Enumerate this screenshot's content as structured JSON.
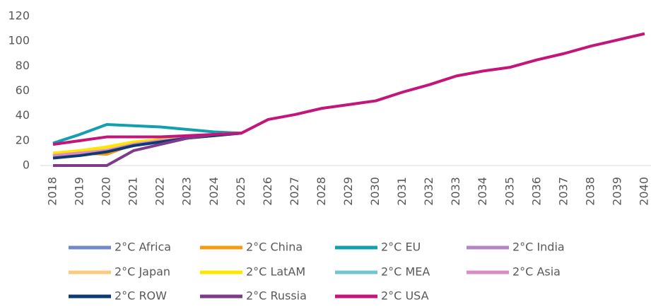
{
  "chart_data": {
    "type": "line",
    "categories": [
      "2018",
      "2019",
      "2020",
      "2021",
      "2022",
      "2023",
      "2024",
      "2025",
      "2026",
      "2027",
      "2028",
      "2029",
      "2030",
      "2031",
      "2032",
      "2033",
      "2034",
      "2035",
      "2036",
      "2037",
      "2038",
      "2039",
      "2040"
    ],
    "ylim": [
      0,
      120
    ],
    "yticks": [
      0,
      20,
      40,
      60,
      80,
      100,
      120
    ],
    "grid": false,
    "legend": "bottom",
    "series": [
      {
        "name": "2°C Africa",
        "color": "#7189c9",
        "values": [
          7,
          9,
          12,
          17,
          20,
          22,
          24,
          26,
          null,
          null,
          null,
          null,
          null,
          null,
          null,
          null,
          null,
          null,
          null,
          null,
          null,
          null,
          null
        ]
      },
      {
        "name": "2°C China",
        "color": "#f39c12",
        "values": [
          8,
          10,
          9,
          17,
          20,
          22,
          25,
          26,
          null,
          null,
          null,
          null,
          null,
          null,
          null,
          null,
          null,
          null,
          null,
          null,
          null,
          null,
          null
        ]
      },
      {
        "name": "2°C EU",
        "color": "#129fae",
        "values": [
          18,
          25,
          33,
          32,
          31,
          29,
          27,
          26,
          null,
          null,
          null,
          null,
          null,
          null,
          null,
          null,
          null,
          null,
          null,
          null,
          null,
          null,
          null
        ]
      },
      {
        "name": "2°C India",
        "color": "#b386c4",
        "values": [
          8,
          10,
          12,
          17,
          20,
          22,
          25,
          26,
          null,
          null,
          null,
          null,
          null,
          null,
          null,
          null,
          null,
          null,
          null,
          null,
          null,
          null,
          null
        ]
      },
      {
        "name": "2°C Japan",
        "color": "#fbc97f",
        "values": [
          9,
          11,
          14,
          18,
          20,
          22,
          25,
          26,
          null,
          null,
          null,
          null,
          null,
          null,
          null,
          null,
          null,
          null,
          null,
          null,
          null,
          null,
          null
        ]
      },
      {
        "name": "2°C LatAM",
        "color": "#ffe500",
        "values": [
          10,
          12,
          15,
          19,
          21,
          23,
          25,
          26,
          null,
          null,
          null,
          null,
          null,
          null,
          null,
          null,
          null,
          null,
          null,
          null,
          null,
          null,
          null
        ]
      },
      {
        "name": "2°C MEA",
        "color": "#72c4d0",
        "values": [
          8,
          10,
          12,
          17,
          20,
          22,
          25,
          26,
          null,
          null,
          null,
          null,
          null,
          null,
          null,
          null,
          null,
          null,
          null,
          null,
          null,
          null,
          null
        ]
      },
      {
        "name": "2°C Asia",
        "color": "#da8cc2",
        "values": [
          8,
          10,
          12,
          17,
          20,
          22,
          25,
          26,
          null,
          null,
          null,
          null,
          null,
          null,
          null,
          null,
          null,
          null,
          null,
          null,
          null,
          null,
          null
        ]
      },
      {
        "name": "2°C ROW",
        "color": "#0d3a72",
        "values": [
          6,
          8,
          11,
          16,
          19,
          22,
          24,
          26,
          null,
          null,
          null,
          null,
          null,
          null,
          null,
          null,
          null,
          null,
          null,
          null,
          null,
          null,
          null
        ]
      },
      {
        "name": "2°C Russia",
        "color": "#7e3b8a",
        "values": [
          0,
          0,
          0,
          12,
          17,
          22,
          25,
          26,
          null,
          null,
          null,
          null,
          null,
          null,
          null,
          null,
          null,
          null,
          null,
          null,
          null,
          null,
          null
        ]
      },
      {
        "name": "2°C USA",
        "color": "#c3157a",
        "values": [
          17,
          20,
          23,
          23,
          23,
          24,
          25,
          26,
          37,
          41,
          46,
          49,
          52,
          59,
          65,
          72,
          76,
          79,
          85,
          90,
          96,
          101,
          106
        ]
      }
    ]
  }
}
